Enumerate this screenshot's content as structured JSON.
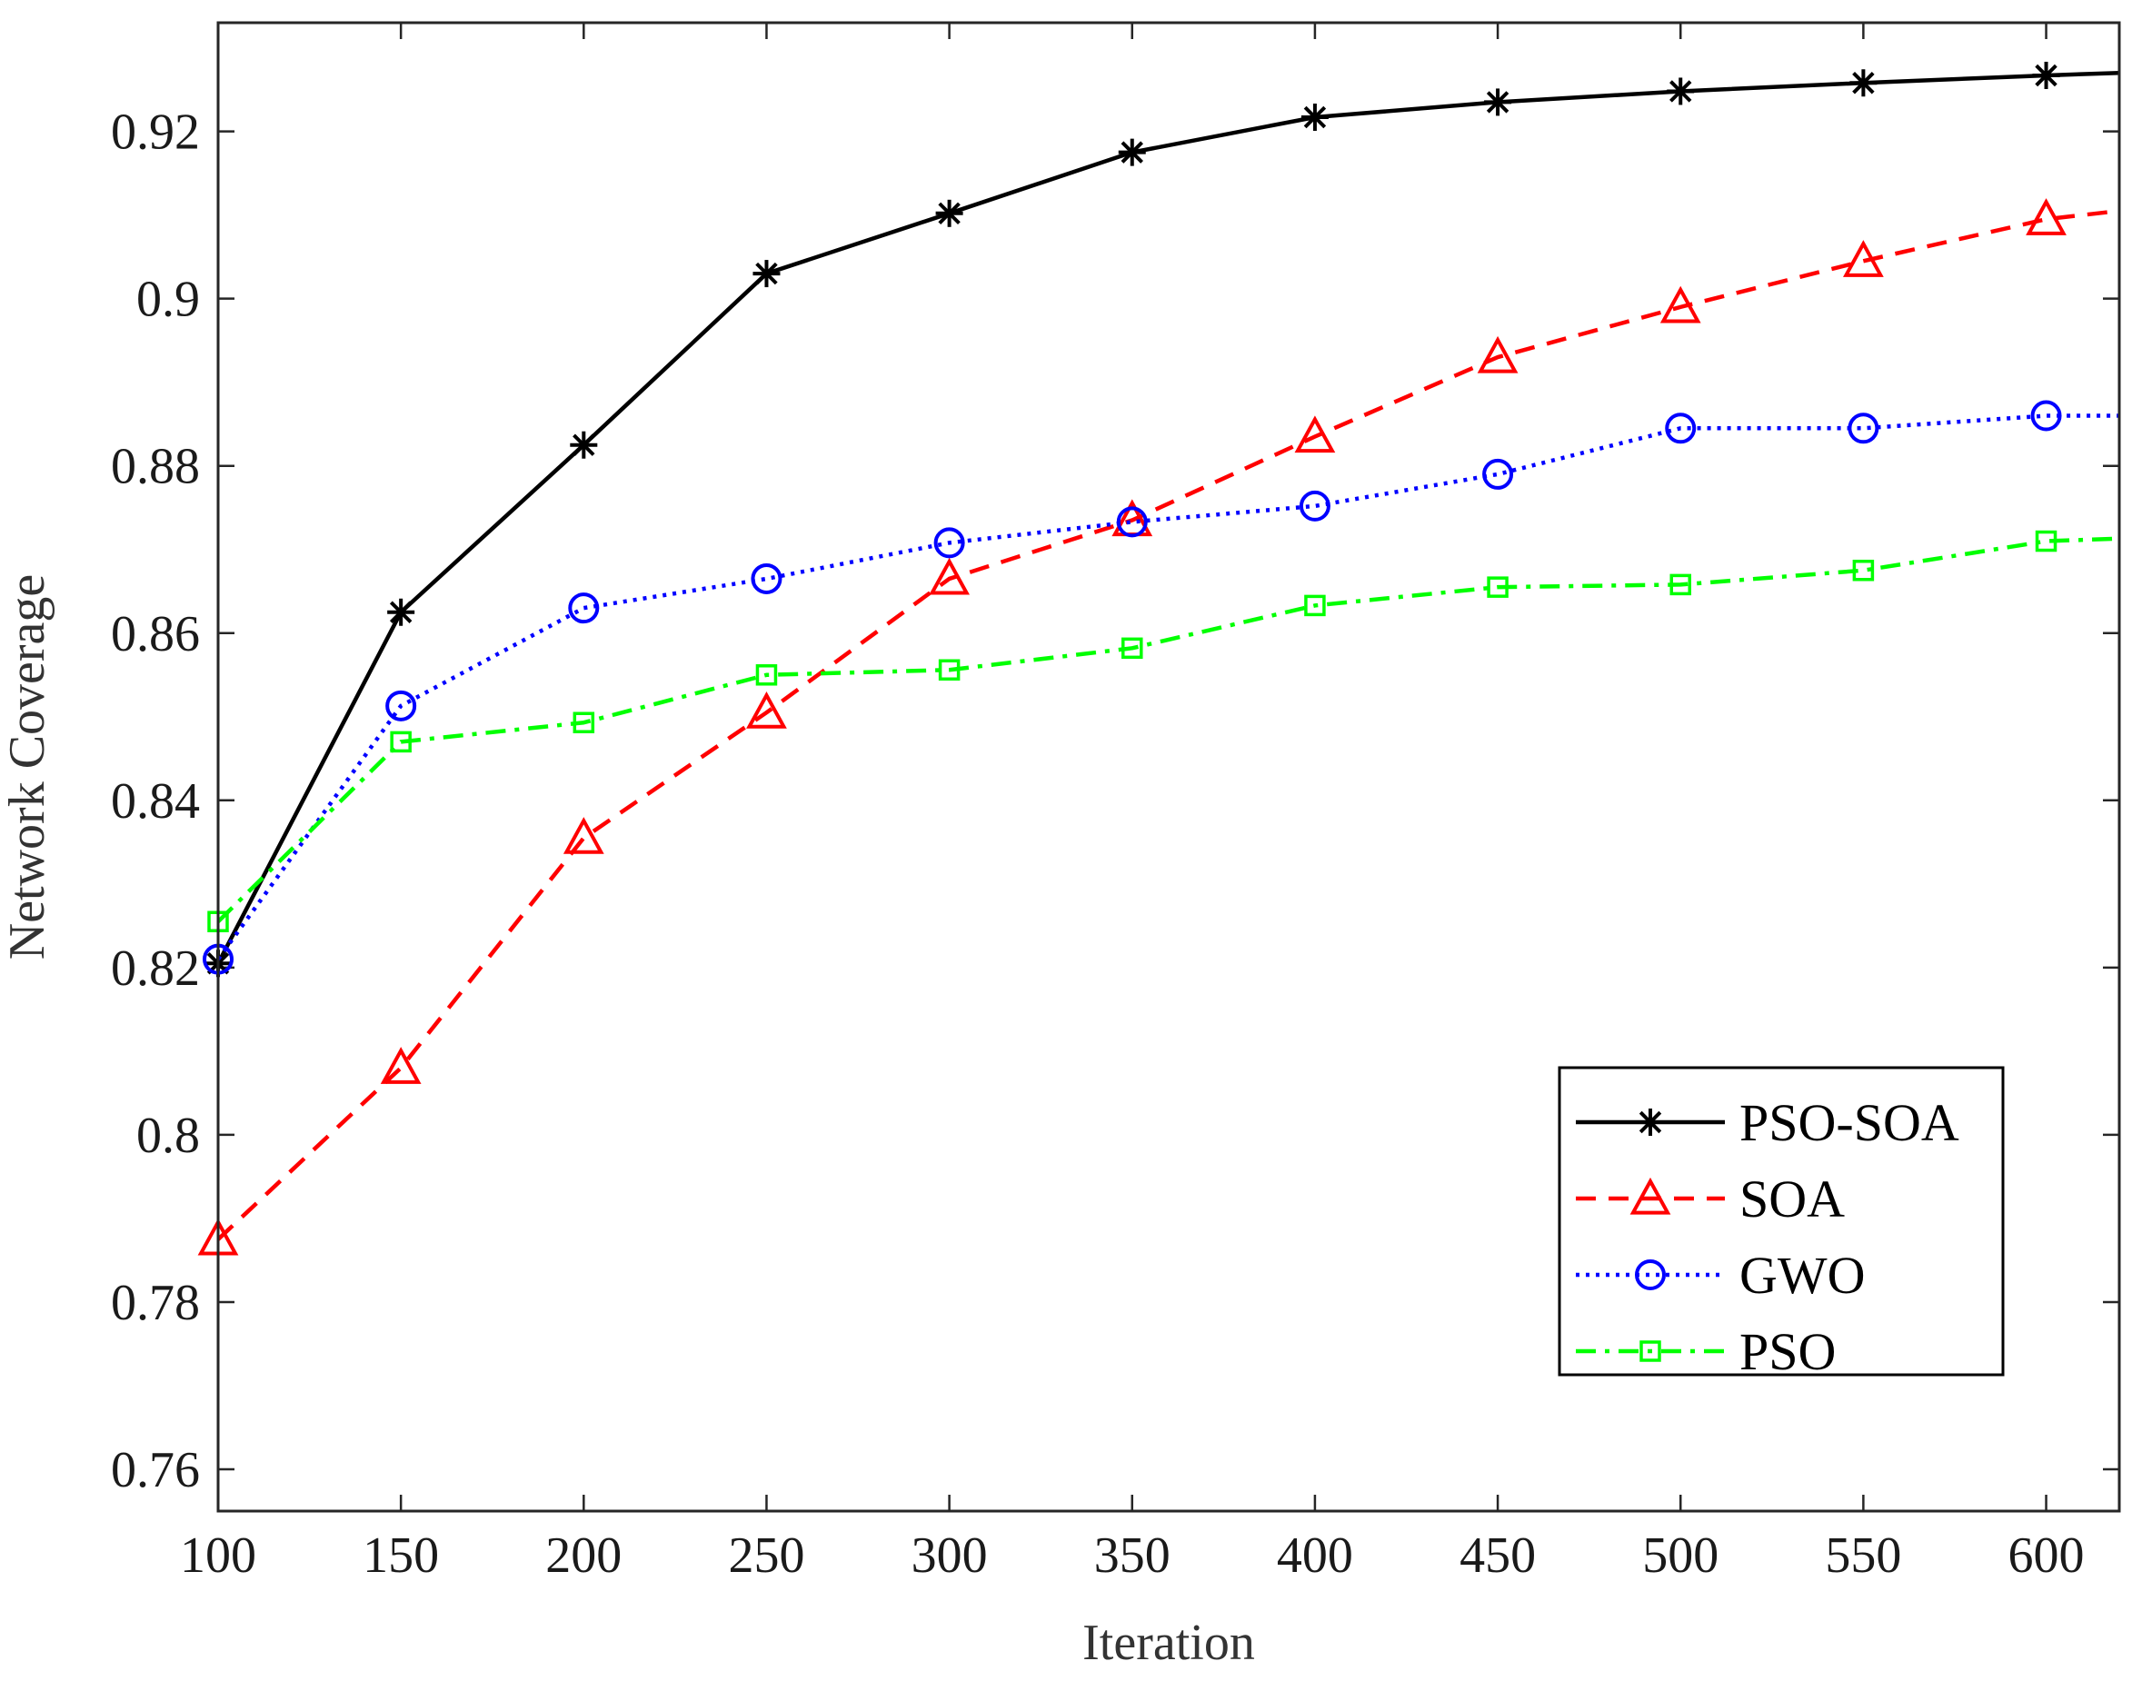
{
  "chart_data": {
    "type": "line",
    "title": "",
    "xlabel": "Iteration",
    "ylabel": "Network Coverage",
    "xlim": [
      100,
      620
    ],
    "ylim": [
      0.755,
      0.933
    ],
    "xticks": [
      100,
      150,
      200,
      250,
      300,
      350,
      400,
      450,
      500,
      550,
      600
    ],
    "xtick_labels": [
      "100",
      "150",
      "200",
      "250",
      "300",
      "350",
      "400",
      "450",
      "500",
      "550",
      "600"
    ],
    "yticks": [
      0.76,
      0.78,
      0.8,
      0.82,
      0.84,
      0.86,
      0.88,
      0.9,
      0.92
    ],
    "ytick_labels": [
      "0.76",
      "0.78",
      "0.8",
      "0.82",
      "0.84",
      "0.86",
      "0.88",
      "0.9",
      "0.92"
    ],
    "grid": false,
    "legend_position": "bottom-right",
    "x": [
      100,
      150,
      200,
      250,
      300,
      350,
      400,
      450,
      500,
      550,
      600,
      620
    ],
    "series": [
      {
        "name": "PSO-SOA",
        "color": "#000000",
        "dash": "solid",
        "marker": "asterisk",
        "values": [
          0.8205,
          0.8625,
          0.8825,
          0.903,
          0.9102,
          0.9175,
          0.9217,
          0.9235,
          0.9248,
          0.9258,
          0.9267,
          0.927
        ]
      },
      {
        "name": "SOA",
        "color": "#ff0000",
        "dash": "dashed",
        "marker": "triangle",
        "values": [
          0.7875,
          0.808,
          0.8355,
          0.8505,
          0.8665,
          0.8735,
          0.8835,
          0.893,
          0.899,
          0.9045,
          0.9095,
          0.9105
        ]
      },
      {
        "name": "GWO",
        "color": "#0000ff",
        "dash": "dotted",
        "marker": "circle",
        "values": [
          0.821,
          0.8513,
          0.863,
          0.8665,
          0.8708,
          0.8733,
          0.8752,
          0.879,
          0.8845,
          0.8845,
          0.886,
          0.886
        ]
      },
      {
        "name": "PSO",
        "color": "#00ff00",
        "dash": "dashdot",
        "marker": "square",
        "values": [
          0.8255,
          0.847,
          0.8493,
          0.855,
          0.8556,
          0.8582,
          0.8633,
          0.8655,
          0.8658,
          0.8675,
          0.871,
          0.8713
        ]
      }
    ]
  }
}
